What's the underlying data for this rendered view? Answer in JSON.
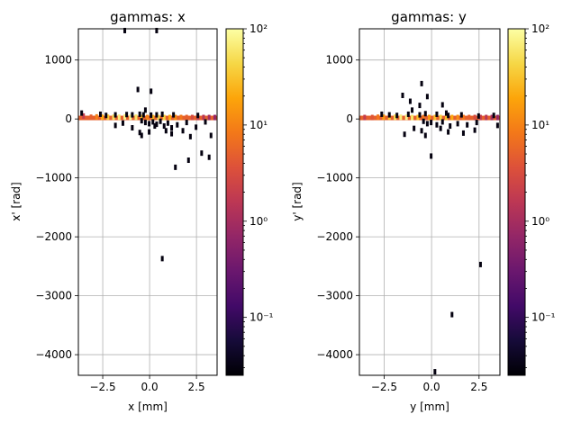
{
  "chart_data": [
    {
      "type": "heatmap",
      "title": "gammas: x",
      "xlabel": "x [mm]",
      "ylabel": "x' [rad]",
      "xlim": [
        -3.8,
        3.6
      ],
      "ylim": [
        -4350,
        1530
      ],
      "xticks": [
        -2.5,
        0.0,
        2.5
      ],
      "xtick_labels": [
        "−2.5",
        "0.0",
        "2.5"
      ],
      "yticks": [
        1000,
        0,
        -1000,
        -2000,
        -3000,
        -4000
      ],
      "ytick_labels": [
        "1000",
        "0",
        "−1000",
        "−2000",
        "−3000",
        "−4000"
      ],
      "grid": true,
      "colorbar": {
        "scale": "log",
        "range": [
          0.025,
          100
        ],
        "ticks": [
          100,
          10,
          1,
          0.1
        ],
        "tick_labels": [
          "10²",
          "10¹",
          "10⁰",
          "10⁻¹"
        ],
        "colormap": "inferno"
      },
      "band": {
        "y": 25,
        "x_from": -3.8,
        "x_to": 3.6
      },
      "cells": [
        [
          -3.5,
          50,
          2
        ],
        [
          -3.1,
          30,
          5
        ],
        [
          -2.8,
          35,
          10
        ],
        [
          -2.5,
          30,
          20
        ],
        [
          -2.2,
          30,
          35
        ],
        [
          -1.9,
          30,
          55
        ],
        [
          -1.6,
          30,
          70
        ],
        [
          -1.3,
          35,
          80
        ],
        [
          -1.0,
          30,
          90
        ],
        [
          -0.7,
          30,
          60
        ],
        [
          -0.4,
          25,
          30
        ],
        [
          -0.1,
          25,
          10
        ],
        [
          0.2,
          25,
          25
        ],
        [
          0.5,
          25,
          50
        ],
        [
          0.8,
          25,
          40
        ],
        [
          1.1,
          25,
          20
        ],
        [
          1.4,
          25,
          12
        ],
        [
          1.7,
          25,
          8
        ],
        [
          2.0,
          25,
          5
        ],
        [
          2.3,
          25,
          3
        ],
        [
          2.6,
          25,
          2
        ],
        [
          2.9,
          25,
          1.5
        ],
        [
          3.2,
          25,
          1
        ],
        [
          3.5,
          25,
          0.7
        ],
        [
          -3.6,
          100,
          0.03
        ],
        [
          -2.6,
          80,
          0.03
        ],
        [
          -2.3,
          60,
          0.03
        ],
        [
          -1.8,
          70,
          0.03
        ],
        [
          -1.2,
          75,
          0.03
        ],
        [
          -0.9,
          70,
          0.03
        ],
        [
          -0.5,
          80,
          0.03
        ],
        [
          -0.3,
          70,
          0.03
        ],
        [
          0.1,
          65,
          0.03
        ],
        [
          0.4,
          70,
          0.03
        ],
        [
          0.7,
          80,
          0.03
        ],
        [
          1.3,
          70,
          0.03
        ],
        [
          2.6,
          60,
          0.03
        ],
        [
          -0.4,
          -30,
          0.03
        ],
        [
          -0.2,
          -60,
          0.03
        ],
        [
          0.0,
          -80,
          0.03
        ],
        [
          0.2,
          -50,
          0.03
        ],
        [
          0.4,
          -90,
          0.03
        ],
        [
          0.6,
          -40,
          0.03
        ],
        [
          0.8,
          -120,
          0.03
        ],
        [
          1.0,
          -70,
          0.03
        ],
        [
          1.2,
          -150,
          0.03
        ],
        [
          1.5,
          -100,
          0.03
        ],
        [
          2.0,
          -60,
          0.03
        ],
        [
          2.5,
          -140,
          0.03
        ],
        [
          3.0,
          -50,
          0.03
        ],
        [
          -1.8,
          -110,
          0.03
        ],
        [
          -1.4,
          -70,
          0.03
        ],
        [
          -0.9,
          -150,
          0.03
        ],
        [
          -0.5,
          -230,
          0.03
        ],
        [
          -0.4,
          -280,
          0.03
        ],
        [
          0.0,
          -220,
          0.03
        ],
        [
          0.3,
          -120,
          0.03
        ],
        [
          0.9,
          -200,
          0.03
        ],
        [
          1.2,
          -250,
          0.03
        ],
        [
          1.8,
          -200,
          0.03
        ],
        [
          2.2,
          -300,
          0.03
        ],
        [
          3.3,
          -280,
          0.03
        ],
        [
          -0.6,
          500,
          0.03
        ],
        [
          0.1,
          470,
          0.03
        ],
        [
          -0.2,
          150,
          0.03
        ],
        [
          1.4,
          -820,
          0.03
        ],
        [
          2.1,
          -700,
          0.03
        ],
        [
          2.8,
          -580,
          0.03
        ],
        [
          3.2,
          -650,
          0.03
        ],
        [
          0.7,
          -2370,
          0.03
        ],
        [
          -1.3,
          1500,
          0.03
        ],
        [
          0.4,
          1500,
          0.03
        ]
      ]
    },
    {
      "type": "heatmap",
      "title": "gammas: y",
      "xlabel": "y [mm]",
      "ylabel": "y' [rad]",
      "xlim": [
        -3.8,
        3.6
      ],
      "ylim": [
        -4350,
        1530
      ],
      "xticks": [
        -2.5,
        0.0,
        2.5
      ],
      "xtick_labels": [
        "−2.5",
        "0.0",
        "2.5"
      ],
      "yticks": [
        1000,
        0,
        -1000,
        -2000,
        -3000,
        -4000
      ],
      "ytick_labels": [
        "1000",
        "0",
        "−1000",
        "−2000",
        "−3000",
        "−4000"
      ],
      "grid": true,
      "colorbar": {
        "scale": "log",
        "range": [
          0.025,
          100
        ],
        "ticks": [
          100,
          10,
          1,
          0.1
        ],
        "tick_labels": [
          "10²",
          "10¹",
          "10⁰",
          "10⁻¹"
        ],
        "colormap": "inferno"
      },
      "band": {
        "y": 25,
        "x_from": -3.8,
        "x_to": 3.6
      },
      "cells": [
        [
          -3.5,
          25,
          2
        ],
        [
          -3.1,
          25,
          4
        ],
        [
          -2.8,
          30,
          8
        ],
        [
          -2.5,
          30,
          15
        ],
        [
          -2.2,
          30,
          30
        ],
        [
          -1.9,
          30,
          50
        ],
        [
          -1.6,
          30,
          70
        ],
        [
          -1.3,
          30,
          80
        ],
        [
          -1.0,
          25,
          60
        ],
        [
          -0.7,
          25,
          30
        ],
        [
          -0.4,
          25,
          8
        ],
        [
          -0.1,
          25,
          15
        ],
        [
          0.2,
          25,
          30
        ],
        [
          0.5,
          25,
          40
        ],
        [
          0.8,
          25,
          30
        ],
        [
          1.1,
          25,
          20
        ],
        [
          1.4,
          25,
          12
        ],
        [
          1.7,
          25,
          8
        ],
        [
          2.0,
          25,
          5
        ],
        [
          2.3,
          25,
          3
        ],
        [
          2.6,
          25,
          2
        ],
        [
          2.9,
          25,
          1.5
        ],
        [
          3.2,
          25,
          1
        ],
        [
          3.5,
          25,
          0.7
        ],
        [
          -2.6,
          80,
          0.03
        ],
        [
          -2.2,
          70,
          0.03
        ],
        [
          -1.8,
          60,
          0.03
        ],
        [
          -1.2,
          80,
          0.03
        ],
        [
          -0.6,
          70,
          0.03
        ],
        [
          -0.3,
          90,
          0.03
        ],
        [
          0.3,
          80,
          0.03
        ],
        [
          0.9,
          60,
          0.03
        ],
        [
          1.6,
          70,
          0.03
        ],
        [
          2.5,
          50,
          0.03
        ],
        [
          3.3,
          60,
          0.03
        ],
        [
          -1.5,
          400,
          0.03
        ],
        [
          -1.1,
          300,
          0.03
        ],
        [
          -0.5,
          600,
          0.03
        ],
        [
          -0.2,
          380,
          0.03
        ],
        [
          -0.6,
          230,
          0.03
        ],
        [
          0.6,
          240,
          0.03
        ],
        [
          0.8,
          100,
          0.03
        ],
        [
          -1.0,
          150,
          0.03
        ],
        [
          -0.4,
          -40,
          0.03
        ],
        [
          -0.2,
          -80,
          0.03
        ],
        [
          0.0,
          -60,
          0.03
        ],
        [
          0.3,
          -100,
          0.03
        ],
        [
          0.6,
          -50,
          0.03
        ],
        [
          1.0,
          -120,
          0.03
        ],
        [
          1.4,
          -80,
          0.03
        ],
        [
          1.9,
          -100,
          0.03
        ],
        [
          2.4,
          -60,
          0.03
        ],
        [
          -1.4,
          -260,
          0.03
        ],
        [
          -0.9,
          -160,
          0.03
        ],
        [
          -0.5,
          -200,
          0.03
        ],
        [
          -0.3,
          -280,
          0.03
        ],
        [
          0.5,
          -160,
          0.03
        ],
        [
          0.9,
          -220,
          0.03
        ],
        [
          1.7,
          -240,
          0.03
        ],
        [
          2.3,
          -190,
          0.03
        ],
        [
          3.5,
          -110,
          0.03
        ],
        [
          0.0,
          -630,
          0.03
        ],
        [
          2.6,
          -2470,
          0.03
        ],
        [
          1.1,
          -3320,
          0.03
        ],
        [
          0.2,
          -4290,
          0.03
        ]
      ]
    }
  ]
}
